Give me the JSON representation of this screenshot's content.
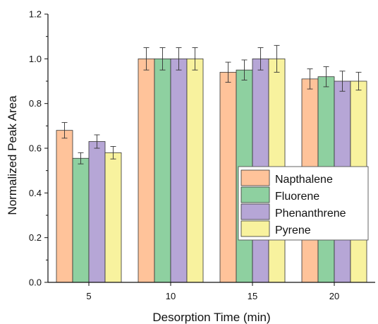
{
  "chart_data": {
    "type": "bar",
    "title": "",
    "xlabel": "Desorption Time (min)",
    "ylabel": "Normalized Peak Area",
    "categories": [
      "5",
      "10",
      "15",
      "20"
    ],
    "ylim": [
      0.0,
      1.2
    ],
    "yticks": [
      "0.0",
      "0.2",
      "0.4",
      "0.6",
      "0.8",
      "1.0",
      "1.2"
    ],
    "grid": false,
    "legend_position": "right",
    "series": [
      {
        "name": "Napthalene",
        "color": "#FFC39A",
        "values": [
          0.68,
          1.0,
          0.94,
          0.91
        ],
        "errors": [
          0.035,
          0.05,
          0.045,
          0.045
        ]
      },
      {
        "name": "Fluorene",
        "color": "#8ED0A0",
        "values": [
          0.555,
          1.0,
          0.95,
          0.92
        ],
        "errors": [
          0.025,
          0.05,
          0.045,
          0.045
        ]
      },
      {
        "name": "Phenanthrene",
        "color": "#B6A6D6",
        "values": [
          0.63,
          1.0,
          1.0,
          0.9
        ],
        "errors": [
          0.03,
          0.05,
          0.05,
          0.045
        ]
      },
      {
        "name": "Pyrene",
        "color": "#F8F29E",
        "values": [
          0.58,
          1.0,
          1.0,
          0.9
        ],
        "errors": [
          0.028,
          0.05,
          0.06,
          0.04
        ]
      }
    ]
  }
}
